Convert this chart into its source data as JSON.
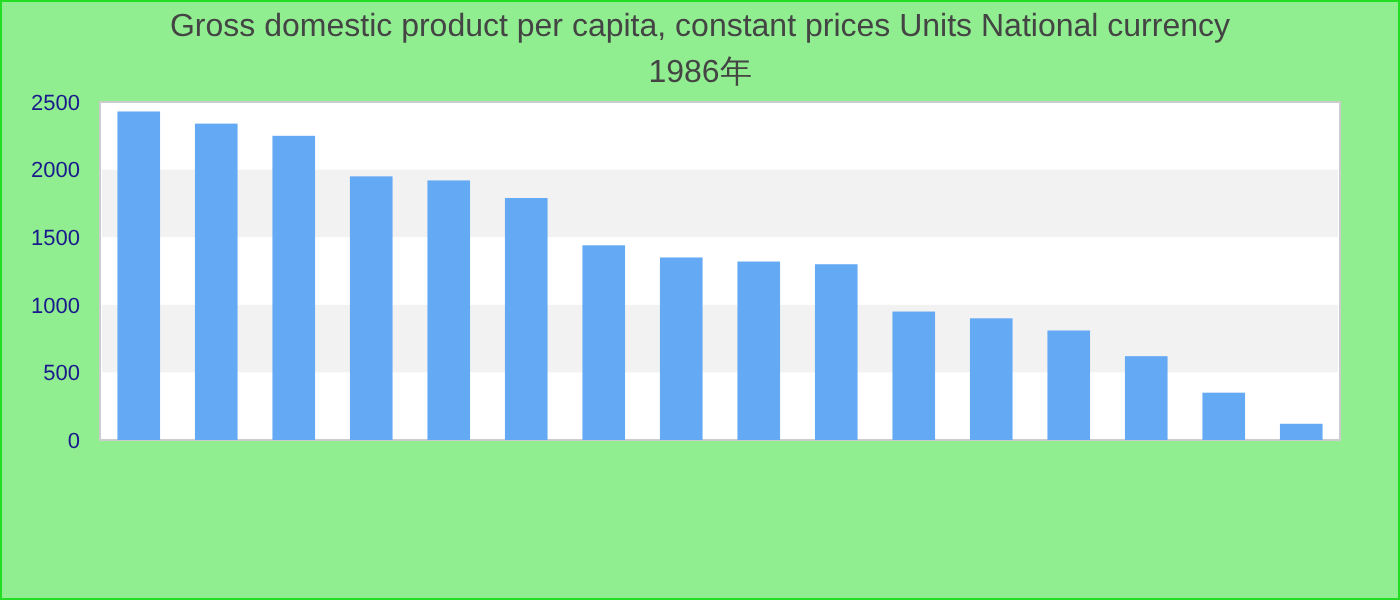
{
  "chart_data": {
    "type": "bar",
    "title": "Gross domestic product per capita, constant prices Units National currency 1986年",
    "categories": [
      null,
      null,
      null,
      null,
      null,
      null,
      null,
      null,
      null,
      null,
      null,
      null,
      null,
      null,
      null,
      null
    ],
    "values": [
      2430,
      2340,
      2250,
      1950,
      1920,
      1790,
      1440,
      1350,
      1320,
      1300,
      950,
      900,
      810,
      620,
      350,
      120
    ],
    "color": "#63a9f4",
    "ylim": [
      0,
      2500
    ],
    "yticks": [
      0,
      500,
      1000,
      1500,
      2000,
      2500
    ]
  }
}
